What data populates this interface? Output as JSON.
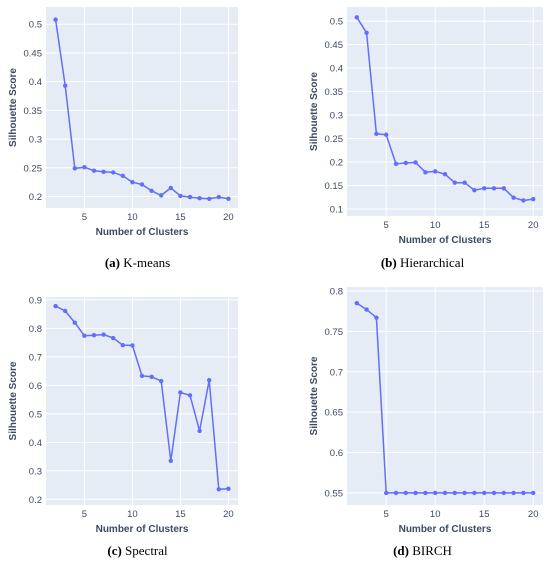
{
  "chart_data": [
    {
      "type": "line",
      "panel_label": "(a)",
      "caption": "K-means",
      "xlabel": "Number of Clusters",
      "ylabel": "Silhouette Score",
      "xlim": [
        1,
        21
      ],
      "ylim": [
        0.18,
        0.53
      ],
      "xticks": [
        5,
        10,
        15,
        20
      ],
      "yticks": [
        0.2,
        0.25,
        0.3,
        0.35,
        0.4,
        0.45,
        0.5
      ],
      "ytick_labels": [
        "0.2",
        "0.25",
        "0.3",
        "0.35",
        "0.4",
        "0.45",
        "0.5"
      ],
      "grid": true,
      "color": "#636efa",
      "x": [
        2,
        3,
        4,
        5,
        6,
        7,
        8,
        9,
        10,
        11,
        12,
        13,
        14,
        15,
        16,
        17,
        18,
        19,
        20
      ],
      "values": [
        0.508,
        0.393,
        0.249,
        0.251,
        0.245,
        0.243,
        0.242,
        0.236,
        0.225,
        0.221,
        0.21,
        0.202,
        0.215,
        0.201,
        0.199,
        0.197,
        0.196,
        0.199,
        0.196
      ]
    },
    {
      "type": "line",
      "panel_label": "(b)",
      "caption": "Hierarchical",
      "xlabel": "Number of Clusters",
      "ylabel": "Silhouette Score",
      "xlim": [
        1,
        21
      ],
      "ylim": [
        0.085,
        0.53
      ],
      "xticks": [
        5,
        10,
        15,
        20
      ],
      "yticks": [
        0.1,
        0.15,
        0.2,
        0.25,
        0.3,
        0.35,
        0.4,
        0.45,
        0.5
      ],
      "ytick_labels": [
        "0.1",
        "0.15",
        "0.2",
        "0.25",
        "0.3",
        "0.35",
        "0.4",
        "0.45",
        "0.5"
      ],
      "grid": true,
      "color": "#636efa",
      "x": [
        2,
        3,
        4,
        5,
        6,
        7,
        8,
        9,
        10,
        11,
        12,
        13,
        14,
        15,
        16,
        17,
        18,
        19,
        20
      ],
      "values": [
        0.508,
        0.475,
        0.26,
        0.258,
        0.196,
        0.198,
        0.199,
        0.178,
        0.18,
        0.174,
        0.156,
        0.156,
        0.14,
        0.144,
        0.144,
        0.144,
        0.124,
        0.118,
        0.121
      ]
    },
    {
      "type": "line",
      "panel_label": "(c)",
      "caption": "Spectral",
      "xlabel": "Number of Clusters",
      "ylabel": "Silhouette Score",
      "xlim": [
        1,
        21
      ],
      "ylim": [
        0.18,
        0.91
      ],
      "xticks": [
        5,
        10,
        15,
        20
      ],
      "yticks": [
        0.2,
        0.3,
        0.4,
        0.5,
        0.6,
        0.7,
        0.8,
        0.9
      ],
      "ytick_labels": [
        "0.2",
        "0.3",
        "0.4",
        "0.5",
        "0.6",
        "0.7",
        "0.8",
        "0.9"
      ],
      "grid": true,
      "color": "#636efa",
      "x": [
        2,
        3,
        4,
        5,
        6,
        7,
        8,
        9,
        10,
        11,
        12,
        13,
        14,
        15,
        16,
        17,
        18,
        19,
        20
      ],
      "values": [
        0.878,
        0.861,
        0.82,
        0.774,
        0.776,
        0.778,
        0.766,
        0.741,
        0.74,
        0.633,
        0.63,
        0.615,
        0.335,
        0.575,
        0.565,
        0.44,
        0.618,
        0.235,
        0.237
      ]
    },
    {
      "type": "line",
      "panel_label": "(d)",
      "caption": "BIRCH",
      "xlabel": "Number of Clusters",
      "ylabel": "Silhouette Score",
      "xlim": [
        1,
        21
      ],
      "ylim": [
        0.535,
        0.805
      ],
      "xticks": [
        5,
        10,
        15,
        20
      ],
      "yticks": [
        0.55,
        0.6,
        0.65,
        0.7,
        0.75,
        0.8
      ],
      "ytick_labels": [
        "0.55",
        "0.6",
        "0.65",
        "0.7",
        "0.75",
        "0.8"
      ],
      "grid": true,
      "color": "#636efa",
      "x": [
        2,
        3,
        4,
        5,
        6,
        7,
        8,
        9,
        10,
        11,
        12,
        13,
        14,
        15,
        16,
        17,
        18,
        19,
        20
      ],
      "values": [
        0.785,
        0.777,
        0.767,
        0.55,
        0.55,
        0.55,
        0.55,
        0.55,
        0.55,
        0.55,
        0.55,
        0.55,
        0.55,
        0.55,
        0.55,
        0.55,
        0.55,
        0.55,
        0.55
      ]
    }
  ]
}
